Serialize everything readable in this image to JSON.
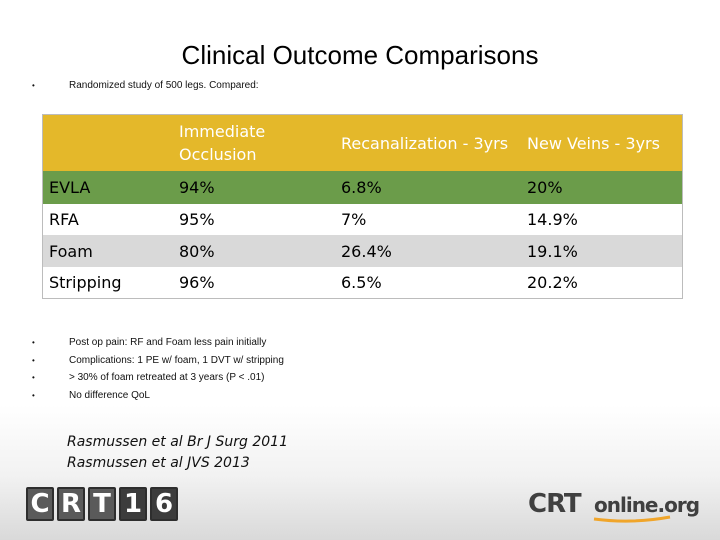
{
  "slide": {
    "title": "Clinical Outcome Comparisons",
    "intro_bullet": "Randomized study of 500 legs.  Compared:",
    "bullet_symbol": "•"
  },
  "table": {
    "headers": [
      "",
      "Immediate Occlusion",
      "Recanalization - 3yrs",
      "New Veins - 3yrs"
    ],
    "rows": [
      {
        "label": "EVLA",
        "values": [
          "94%",
          "6.8%",
          "20%"
        ]
      },
      {
        "label": "RFA",
        "values": [
          "95%",
          "7%",
          "14.9%"
        ]
      },
      {
        "label": "Foam",
        "values": [
          "80%",
          "26.4%",
          "19.1%"
        ]
      },
      {
        "label": "Stripping",
        "values": [
          "96%",
          "6.5%",
          "20.2%"
        ]
      }
    ],
    "colors": {
      "header": "#e4b82a",
      "evla_row": "#6b9c4a",
      "foam_row": "#d9d9d9"
    }
  },
  "notes": [
    "Post op pain: RF and Foam less pain initially",
    "Complications: 1 PE w/ foam, 1 DVT w/ stripping",
    "> 30% of foam retreated at 3 years (P < .01)",
    "No difference QoL"
  ],
  "references": [
    "Rasmussen et al Br J Surg 2011",
    "Rasmussen et al JVS 2013"
  ],
  "logos": {
    "left_letters": [
      "C",
      "R",
      "T",
      "1",
      "6"
    ],
    "right_crt": "CRT",
    "right_online": "online.org"
  }
}
